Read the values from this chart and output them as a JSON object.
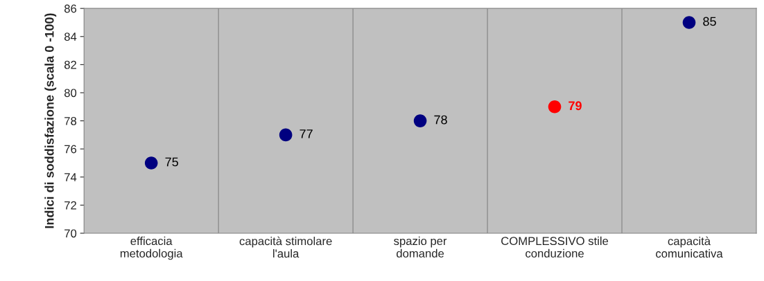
{
  "chart_data": {
    "type": "scatter",
    "ylabel": "Indici di soddisfazione (scala 0 -100)",
    "categories": [
      "efficacia\nmetodologia",
      "capacità stimolare\nl'aula",
      "spazio per\ndomande",
      "COMPLESSIVO stile\nconduzione",
      "capacità\ncomunicativa"
    ],
    "values": [
      75,
      77,
      78,
      79,
      85
    ],
    "colors": [
      "#000080",
      "#000080",
      "#000080",
      "#ff0000",
      "#000080"
    ],
    "ylim": [
      70,
      86
    ],
    "yticks": [
      70,
      72,
      74,
      76,
      78,
      80,
      82,
      84,
      86
    ],
    "grid": "x",
    "marker": "circle",
    "data_labels": true,
    "legend": false
  }
}
